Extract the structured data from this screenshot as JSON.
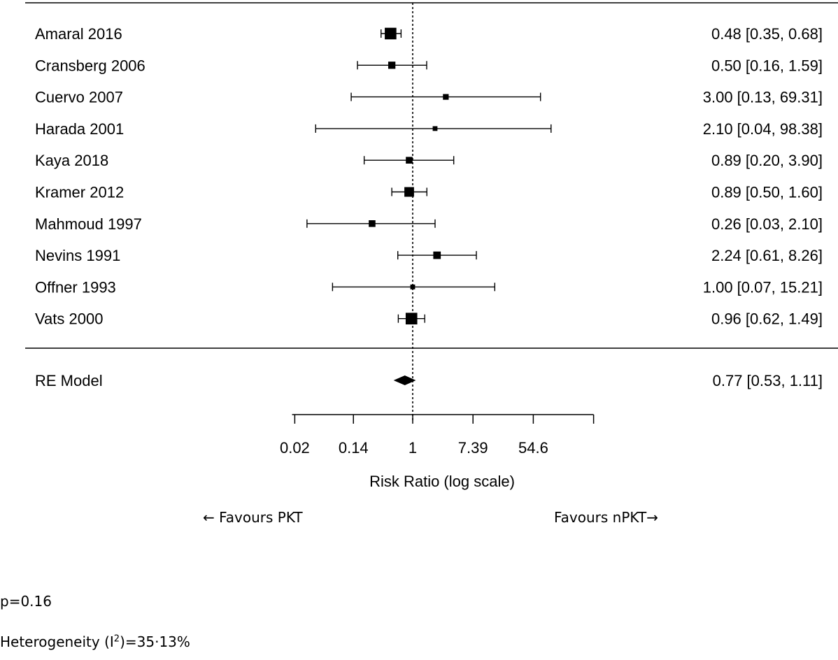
{
  "chart_data": {
    "type": "forest",
    "studies": [
      {
        "label": "Amaral 2016",
        "estimate": 0.48,
        "lower": 0.35,
        "upper": 0.68,
        "ci_text": "0.48 [0.35,  0.68]",
        "weight": 0.9
      },
      {
        "label": "Cransberg  2006",
        "estimate": 0.5,
        "lower": 0.16,
        "upper": 1.59,
        "ci_text": "0.50 [0.16,  1.59]",
        "weight": 0.45
      },
      {
        "label": "Cuervo 2007",
        "estimate": 3.0,
        "lower": 0.13,
        "upper": 69.31,
        "ci_text": "3.00 [0.13, 69.31]",
        "weight": 0.3
      },
      {
        "label": "Harada 2001",
        "estimate": 2.1,
        "lower": 0.04,
        "upper": 98.38,
        "ci_text": "2.10 [0.04, 98.38]",
        "weight": 0.2
      },
      {
        "label": "Kaya 2018",
        "estimate": 0.89,
        "lower": 0.2,
        "upper": 3.9,
        "ci_text": "0.89 [0.20,  3.90]",
        "weight": 0.4
      },
      {
        "label": "Kramer 2012",
        "estimate": 0.89,
        "lower": 0.5,
        "upper": 1.6,
        "ci_text": "0.89 [0.50,  1.60]",
        "weight": 0.7
      },
      {
        "label": "Mahmoud 1997",
        "estimate": 0.26,
        "lower": 0.03,
        "upper": 2.1,
        "ci_text": "0.26 [0.03,  2.10]",
        "weight": 0.4
      },
      {
        "label": "Nevins 1991",
        "estimate": 2.24,
        "lower": 0.61,
        "upper": 8.26,
        "ci_text": "2.24 [0.61,  8.26]",
        "weight": 0.48
      },
      {
        "label": "Offner 1993",
        "estimate": 1.0,
        "lower": 0.07,
        "upper": 15.21,
        "ci_text": "1.00 [0.07, 15.21]",
        "weight": 0.2
      },
      {
        "label": "Vats 2000",
        "estimate": 0.96,
        "lower": 0.62,
        "upper": 1.49,
        "ci_text": "0.96 [0.62,  1.49]",
        "weight": 0.9
      }
    ],
    "summary": {
      "label": "RE Model",
      "estimate": 0.77,
      "lower": 0.53,
      "upper": 1.11,
      "ci_text": "0.77 [0.53,  1.11]"
    },
    "xaxis": {
      "scale": "log",
      "ticks": [
        0.02,
        0.14,
        1,
        7.39,
        54.6
      ],
      "tick_labels": [
        "0.02",
        "0.14",
        "1",
        "7.39",
        "54.6"
      ],
      "xlim": [
        0.0183,
        403.4
      ],
      "label": "Risk Ratio (log scale)"
    },
    "reference_line": 1
  },
  "annotations": {
    "favours_left": "← Favours PKT",
    "favours_right": "Favours nPKT→",
    "p_value": "p=0.16",
    "heterogeneity_prefix": "Heterogeneity (I",
    "heterogeneity_sup": "2",
    "heterogeneity_suffix": ")=35·13%"
  }
}
